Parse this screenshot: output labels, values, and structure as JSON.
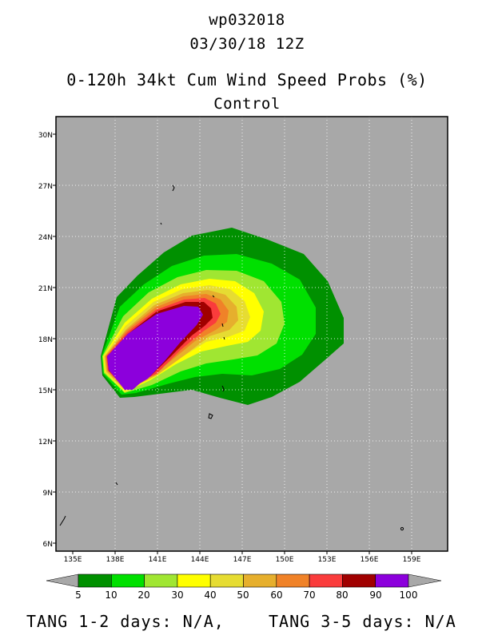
{
  "header": {
    "storm_id": "wp032018",
    "datetime": "03/30/18 12Z",
    "product": "0-120h 34kt Cum Wind Speed Probs (%)",
    "model": "Control"
  },
  "map": {
    "lon_labels": [
      "135E",
      "138E",
      "141E",
      "144E",
      "147E",
      "150E",
      "153E",
      "156E",
      "159E"
    ],
    "lat_labels": [
      "30N",
      "27N",
      "24N",
      "21N",
      "18N",
      "15N",
      "12N",
      "9N",
      "6N"
    ],
    "background_color": "#a8a8a8",
    "grid": "dotted"
  },
  "legend": {
    "labels": [
      "5",
      "10",
      "20",
      "30",
      "40",
      "50",
      "60",
      "70",
      "80",
      "90",
      "100"
    ],
    "colors": [
      "#009000",
      "#00e000",
      "#a0e632",
      "#ffff00",
      "#e6dc32",
      "#e6af2d",
      "#f08228",
      "#fa3c3c",
      "#a00000",
      "#8c00dc"
    ]
  },
  "footer": {
    "left": "TANG 1-2 days:  N/A,",
    "right": "TANG 3-5 days:  N/A"
  }
}
